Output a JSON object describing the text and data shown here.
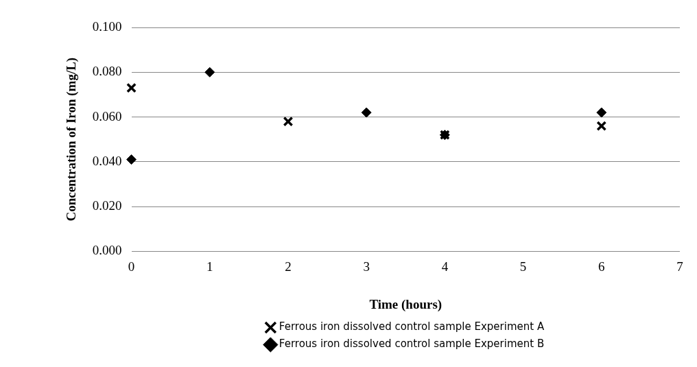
{
  "chart_data": {
    "type": "scatter",
    "xlabel": "Time (hours)",
    "ylabel": "Concentration of Iron (mg/L)",
    "series": [
      {
        "name": "Ferrous iron dissolved control sample Experiment A",
        "color": "#000000",
        "marker": "cross",
        "x": [
          0,
          2,
          4,
          6
        ],
        "values": [
          0.073,
          0.058,
          0.052,
          0.056
        ]
      },
      {
        "name": "Ferrous iron dissolved control sample Experiment B",
        "color": "#000000",
        "marker": "diamond",
        "x": [
          0,
          1,
          3,
          4,
          6
        ],
        "values": [
          0.041,
          0.08,
          0.062,
          0.052,
          0.062
        ]
      }
    ],
    "xlim": [
      0,
      7
    ],
    "xticks": [
      0,
      1,
      2,
      3,
      4,
      5,
      6,
      7
    ],
    "ylim": [
      0,
      0.1
    ],
    "yticks": [
      {
        "value": 0,
        "label": "0.000"
      },
      {
        "value": 0.02,
        "label": "0.020"
      },
      {
        "value": 0.04,
        "label": "0.040"
      },
      {
        "value": 0.06,
        "label": "0.060"
      },
      {
        "value": 0.08,
        "label": "0.080"
      },
      {
        "value": 0.1,
        "label": "0.100"
      }
    ],
    "grid": "y",
    "legend": "bottom"
  }
}
